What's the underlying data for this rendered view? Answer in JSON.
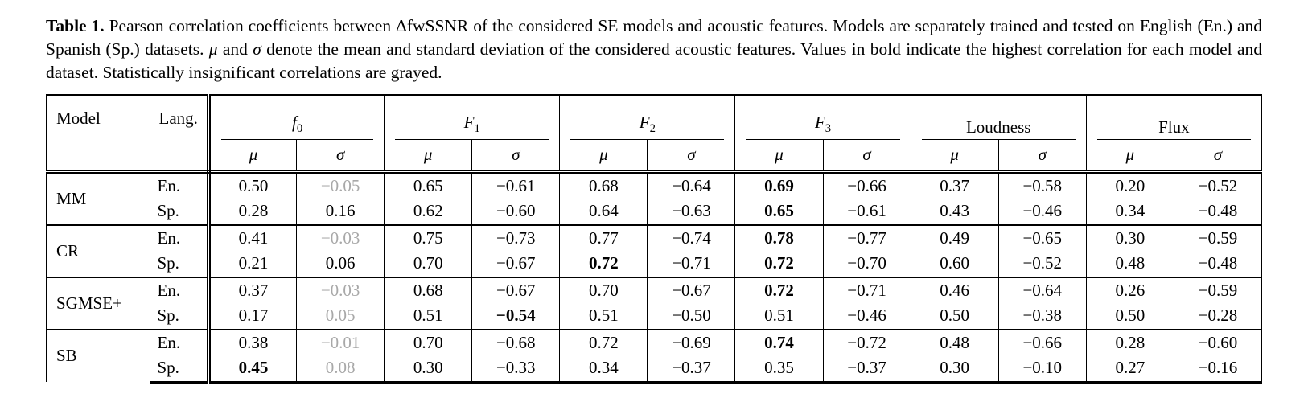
{
  "caption": {
    "segments": [
      {
        "text": "Table 1.",
        "bold": true
      },
      {
        "text": " Pearson correlation coefficients between ΔfwSSNR of the considered SE models and acoustic features. Models are separately trained and tested on English (En.) and Spanish (Sp.) datasets. "
      },
      {
        "text": "μ",
        "italic": true
      },
      {
        "text": " and "
      },
      {
        "text": "σ",
        "italic": true
      },
      {
        "text": " denote the mean and standard deviation of the considered acoustic features. Values in bold indicate the highest correlation for each model and dataset. Statistically insignificant correlations are grayed."
      }
    ]
  },
  "table": {
    "header": {
      "model": "Model",
      "lang": "Lang.",
      "groups": [
        {
          "label": "f",
          "sub": "0",
          "italic": true
        },
        {
          "label": "F",
          "sub": "1",
          "italic": true
        },
        {
          "label": "F",
          "sub": "2",
          "italic": true
        },
        {
          "label": "F",
          "sub": "3",
          "italic": true
        },
        {
          "label": "Loudness",
          "sub": "",
          "italic": false
        },
        {
          "label": "Flux",
          "sub": "",
          "italic": false
        }
      ],
      "stats": [
        "μ",
        "σ"
      ]
    },
    "body": [
      {
        "model": "MM",
        "rows": [
          {
            "lang": "En.",
            "cells": [
              {
                "v": "0.50"
              },
              {
                "v": "−0.05",
                "gray": true
              },
              {
                "v": "0.65"
              },
              {
                "v": "−0.61"
              },
              {
                "v": "0.68"
              },
              {
                "v": "−0.64"
              },
              {
                "v": "0.69",
                "bold": true
              },
              {
                "v": "−0.66"
              },
              {
                "v": "0.37"
              },
              {
                "v": "−0.58"
              },
              {
                "v": "0.20"
              },
              {
                "v": "−0.52"
              }
            ]
          },
          {
            "lang": "Sp.",
            "cells": [
              {
                "v": "0.28"
              },
              {
                "v": "0.16"
              },
              {
                "v": "0.62"
              },
              {
                "v": "−0.60"
              },
              {
                "v": "0.64"
              },
              {
                "v": "−0.63"
              },
              {
                "v": "0.65",
                "bold": true
              },
              {
                "v": "−0.61"
              },
              {
                "v": "0.43"
              },
              {
                "v": "−0.46"
              },
              {
                "v": "0.34"
              },
              {
                "v": "−0.48"
              }
            ]
          }
        ]
      },
      {
        "model": "CR",
        "rows": [
          {
            "lang": "En.",
            "cells": [
              {
                "v": "0.41"
              },
              {
                "v": "−0.03",
                "gray": true
              },
              {
                "v": "0.75"
              },
              {
                "v": "−0.73"
              },
              {
                "v": "0.77"
              },
              {
                "v": "−0.74"
              },
              {
                "v": "0.78",
                "bold": true
              },
              {
                "v": "−0.77"
              },
              {
                "v": "0.49"
              },
              {
                "v": "−0.65"
              },
              {
                "v": "0.30"
              },
              {
                "v": "−0.59"
              }
            ]
          },
          {
            "lang": "Sp.",
            "cells": [
              {
                "v": "0.21"
              },
              {
                "v": "0.06"
              },
              {
                "v": "0.70"
              },
              {
                "v": "−0.67"
              },
              {
                "v": "0.72",
                "bold": true
              },
              {
                "v": "−0.71"
              },
              {
                "v": "0.72",
                "bold": true
              },
              {
                "v": "−0.70"
              },
              {
                "v": "0.60"
              },
              {
                "v": "−0.52"
              },
              {
                "v": "0.48"
              },
              {
                "v": "−0.48"
              }
            ]
          }
        ]
      },
      {
        "model": "SGMSE+",
        "rows": [
          {
            "lang": "En.",
            "cells": [
              {
                "v": "0.37"
              },
              {
                "v": "−0.03",
                "gray": true
              },
              {
                "v": "0.68"
              },
              {
                "v": "−0.67"
              },
              {
                "v": "0.70"
              },
              {
                "v": "−0.67"
              },
              {
                "v": "0.72",
                "bold": true
              },
              {
                "v": "−0.71"
              },
              {
                "v": "0.46"
              },
              {
                "v": "−0.64"
              },
              {
                "v": "0.26"
              },
              {
                "v": "−0.59"
              }
            ]
          },
          {
            "lang": "Sp.",
            "cells": [
              {
                "v": "0.17"
              },
              {
                "v": "0.05",
                "gray": true
              },
              {
                "v": "0.51"
              },
              {
                "v": "−0.54",
                "bold": true
              },
              {
                "v": "0.51"
              },
              {
                "v": "−0.50"
              },
              {
                "v": "0.51"
              },
              {
                "v": "−0.46"
              },
              {
                "v": "0.50"
              },
              {
                "v": "−0.38"
              },
              {
                "v": "0.50"
              },
              {
                "v": "−0.28"
              }
            ]
          }
        ]
      },
      {
        "model": "SB",
        "rows": [
          {
            "lang": "En.",
            "cells": [
              {
                "v": "0.38"
              },
              {
                "v": "−0.01",
                "gray": true
              },
              {
                "v": "0.70"
              },
              {
                "v": "−0.68"
              },
              {
                "v": "0.72"
              },
              {
                "v": "−0.69"
              },
              {
                "v": "0.74",
                "bold": true
              },
              {
                "v": "−0.72"
              },
              {
                "v": "0.48"
              },
              {
                "v": "−0.66"
              },
              {
                "v": "0.28"
              },
              {
                "v": "−0.60"
              }
            ]
          },
          {
            "lang": "Sp.",
            "cells": [
              {
                "v": "0.45",
                "bold": true
              },
              {
                "v": "0.08",
                "gray": true
              },
              {
                "v": "0.30"
              },
              {
                "v": "−0.33"
              },
              {
                "v": "0.34"
              },
              {
                "v": "−0.37"
              },
              {
                "v": "0.35"
              },
              {
                "v": "−0.37"
              },
              {
                "v": "0.30"
              },
              {
                "v": "−0.10"
              },
              {
                "v": "0.27"
              },
              {
                "v": "−0.16"
              }
            ]
          }
        ]
      }
    ]
  },
  "colors": {
    "text": "#000000",
    "grayed_value": "#a8a8a8",
    "background": "#ffffff"
  }
}
